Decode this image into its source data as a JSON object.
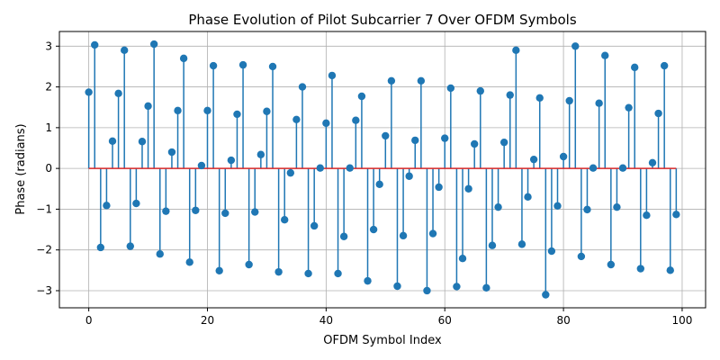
{
  "chart_data": {
    "type": "stem",
    "title": "Phase Evolution of Pilot Subcarrier 7 Over OFDM Symbols",
    "xlabel": "OFDM Symbol Index",
    "ylabel": "Phase (radians)",
    "xlim": [
      -4.95,
      103.95
    ],
    "ylim": [
      -3.42,
      3.36
    ],
    "xticks": [
      0,
      20,
      40,
      60,
      80,
      100
    ],
    "yticks": [
      -3,
      -2,
      -1,
      0,
      1,
      2,
      3
    ],
    "grid": true,
    "baseline": 0,
    "colors": {
      "stem": "#1f77b4",
      "marker": "#1f77b4",
      "baseline": "#d62728"
    },
    "x_start": 0,
    "values": [
      1.87,
      3.03,
      -1.94,
      -0.91,
      0.67,
      1.84,
      2.9,
      -1.91,
      -0.86,
      0.66,
      1.53,
      3.05,
      -2.1,
      -1.05,
      0.4,
      1.42,
      2.7,
      -2.3,
      -1.03,
      0.07,
      1.42,
      2.52,
      -2.51,
      -1.1,
      0.2,
      1.33,
      2.54,
      -2.36,
      -1.07,
      0.34,
      1.4,
      2.5,
      -2.54,
      -1.26,
      -0.11,
      1.2,
      2.0,
      -2.58,
      -1.41,
      0.01,
      1.11,
      2.28,
      -2.58,
      -1.67,
      0.01,
      1.18,
      1.77,
      -2.76,
      -1.5,
      -0.39,
      0.8,
      2.15,
      -2.89,
      -1.65,
      -0.19,
      0.69,
      2.15,
      -3.0,
      -1.6,
      -0.46,
      0.74,
      1.97,
      -2.9,
      -2.21,
      -0.5,
      0.6,
      1.9,
      -2.93,
      -1.89,
      -0.95,
      0.64,
      1.8,
      2.9,
      -1.86,
      -0.7,
      0.22,
      1.73,
      -3.1,
      -2.03,
      -0.92,
      0.29,
      1.66,
      3.0,
      -2.16,
      -1.01,
      0.01,
      1.6,
      2.77,
      -2.36,
      -0.95,
      0.01,
      1.49,
      2.48,
      -2.46,
      -1.15,
      0.14,
      1.35,
      2.52,
      -2.5,
      -1.13
    ]
  }
}
